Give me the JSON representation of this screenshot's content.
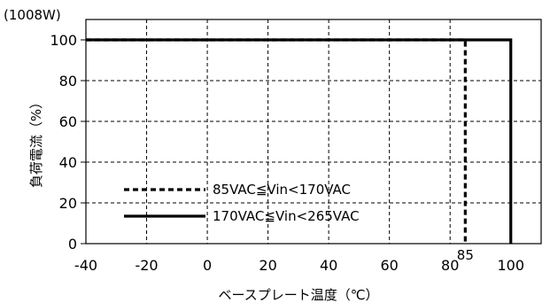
{
  "chart_data": {
    "type": "line",
    "unit_note": "(1008W)",
    "xlabel": "ベースプレート温度（℃）",
    "ylabel": "負荷電流（%）",
    "xlim": [
      -40,
      110
    ],
    "ylim": [
      0,
      110
    ],
    "x_ticks": [
      -40,
      -20,
      0,
      20,
      40,
      60,
      80,
      100
    ],
    "y_ticks": [
      0,
      20,
      40,
      60,
      80,
      100
    ],
    "x_ticks_dashed_grid": [
      -20,
      0,
      20,
      40,
      60,
      80
    ],
    "y_ticks_dashed_grid": [
      20,
      40,
      60,
      80
    ],
    "grid": true,
    "series": [
      {
        "name": "85VAC≦Vin<170VAC",
        "style": "dashed",
        "x": [
          -40,
          85,
          85
        ],
        "y": [
          100,
          100,
          0
        ]
      },
      {
        "name": "170VAC≦Vin<265VAC",
        "style": "solid",
        "x": [
          -40,
          100,
          100
        ],
        "y": [
          100,
          100,
          0
        ]
      }
    ],
    "annotations": [
      {
        "text": "85",
        "x": 85
      }
    ],
    "legend_position": "bottom-left"
  }
}
